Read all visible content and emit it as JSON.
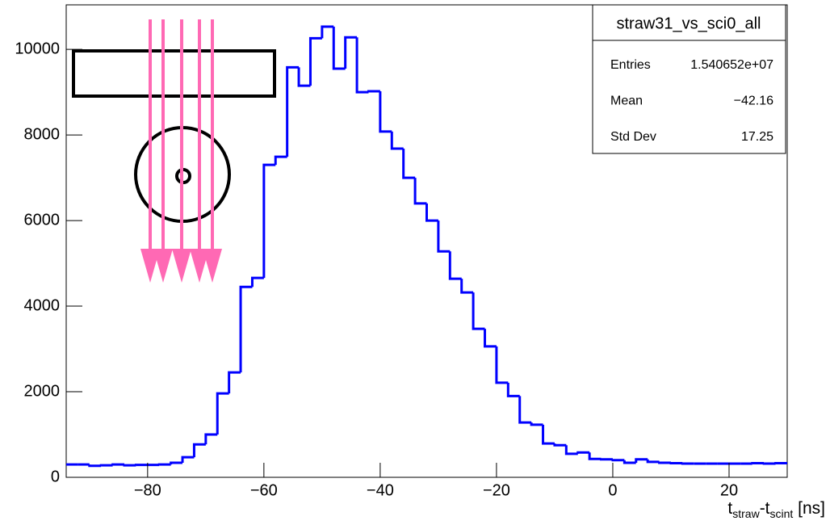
{
  "chart_data": {
    "type": "histogram",
    "stats": {
      "title": "straw31_vs_sci0_all",
      "rows": [
        [
          "Entries",
          "1.540652e+07"
        ],
        [
          "Mean",
          "−42.16"
        ],
        [
          "Std Dev",
          "17.25"
        ]
      ]
    },
    "x_label": {
      "main": "t",
      "sub1": "straw",
      "mid": "-t",
      "sub2": "scint",
      "unit": " [ns]"
    },
    "bins": [
      -94,
      -92,
      -90,
      -88,
      -86,
      -84,
      -82,
      -80,
      -78,
      -76,
      -74,
      -72,
      -70,
      -68,
      -66,
      -64,
      -62,
      -60,
      -58,
      -56,
      -54,
      -52,
      -50,
      -48,
      -46,
      -44,
      -42,
      -40,
      -38,
      -36,
      -34,
      -32,
      -30,
      -28,
      -26,
      -24,
      -22,
      -20,
      -18,
      -16,
      -14,
      -12,
      -10,
      -8,
      -6,
      -4,
      -2,
      0,
      2,
      4,
      6,
      8,
      10,
      12,
      14,
      16,
      18,
      20,
      22,
      24,
      26,
      28,
      30
    ],
    "values": [
      300,
      300,
      270,
      280,
      300,
      280,
      290,
      290,
      300,
      340,
      470,
      770,
      1000,
      1960,
      2450,
      4450,
      4660,
      7300,
      7490,
      9580,
      9150,
      10260,
      10530,
      9550,
      10280,
      9000,
      9020,
      8080,
      7680,
      7000,
      6400,
      6000,
      5280,
      4640,
      4320,
      3470,
      3060,
      2210,
      1900,
      1280,
      1230,
      790,
      750,
      550,
      580,
      430,
      420,
      400,
      340,
      420,
      360,
      340,
      330,
      320,
      320,
      320,
      320,
      320,
      320,
      330,
      320,
      330
    ],
    "color": "#0000ff",
    "xlim": [
      -94,
      30
    ],
    "ylim": [
      0,
      11040
    ],
    "xticks": [
      {
        "value": -80,
        "label": "−80"
      },
      {
        "value": -60,
        "label": "−60"
      },
      {
        "value": -40,
        "label": "−40"
      },
      {
        "value": -20,
        "label": "−20"
      },
      0,
      20
    ],
    "yticks": [
      0,
      2000,
      4000,
      6000,
      8000,
      10000
    ]
  }
}
